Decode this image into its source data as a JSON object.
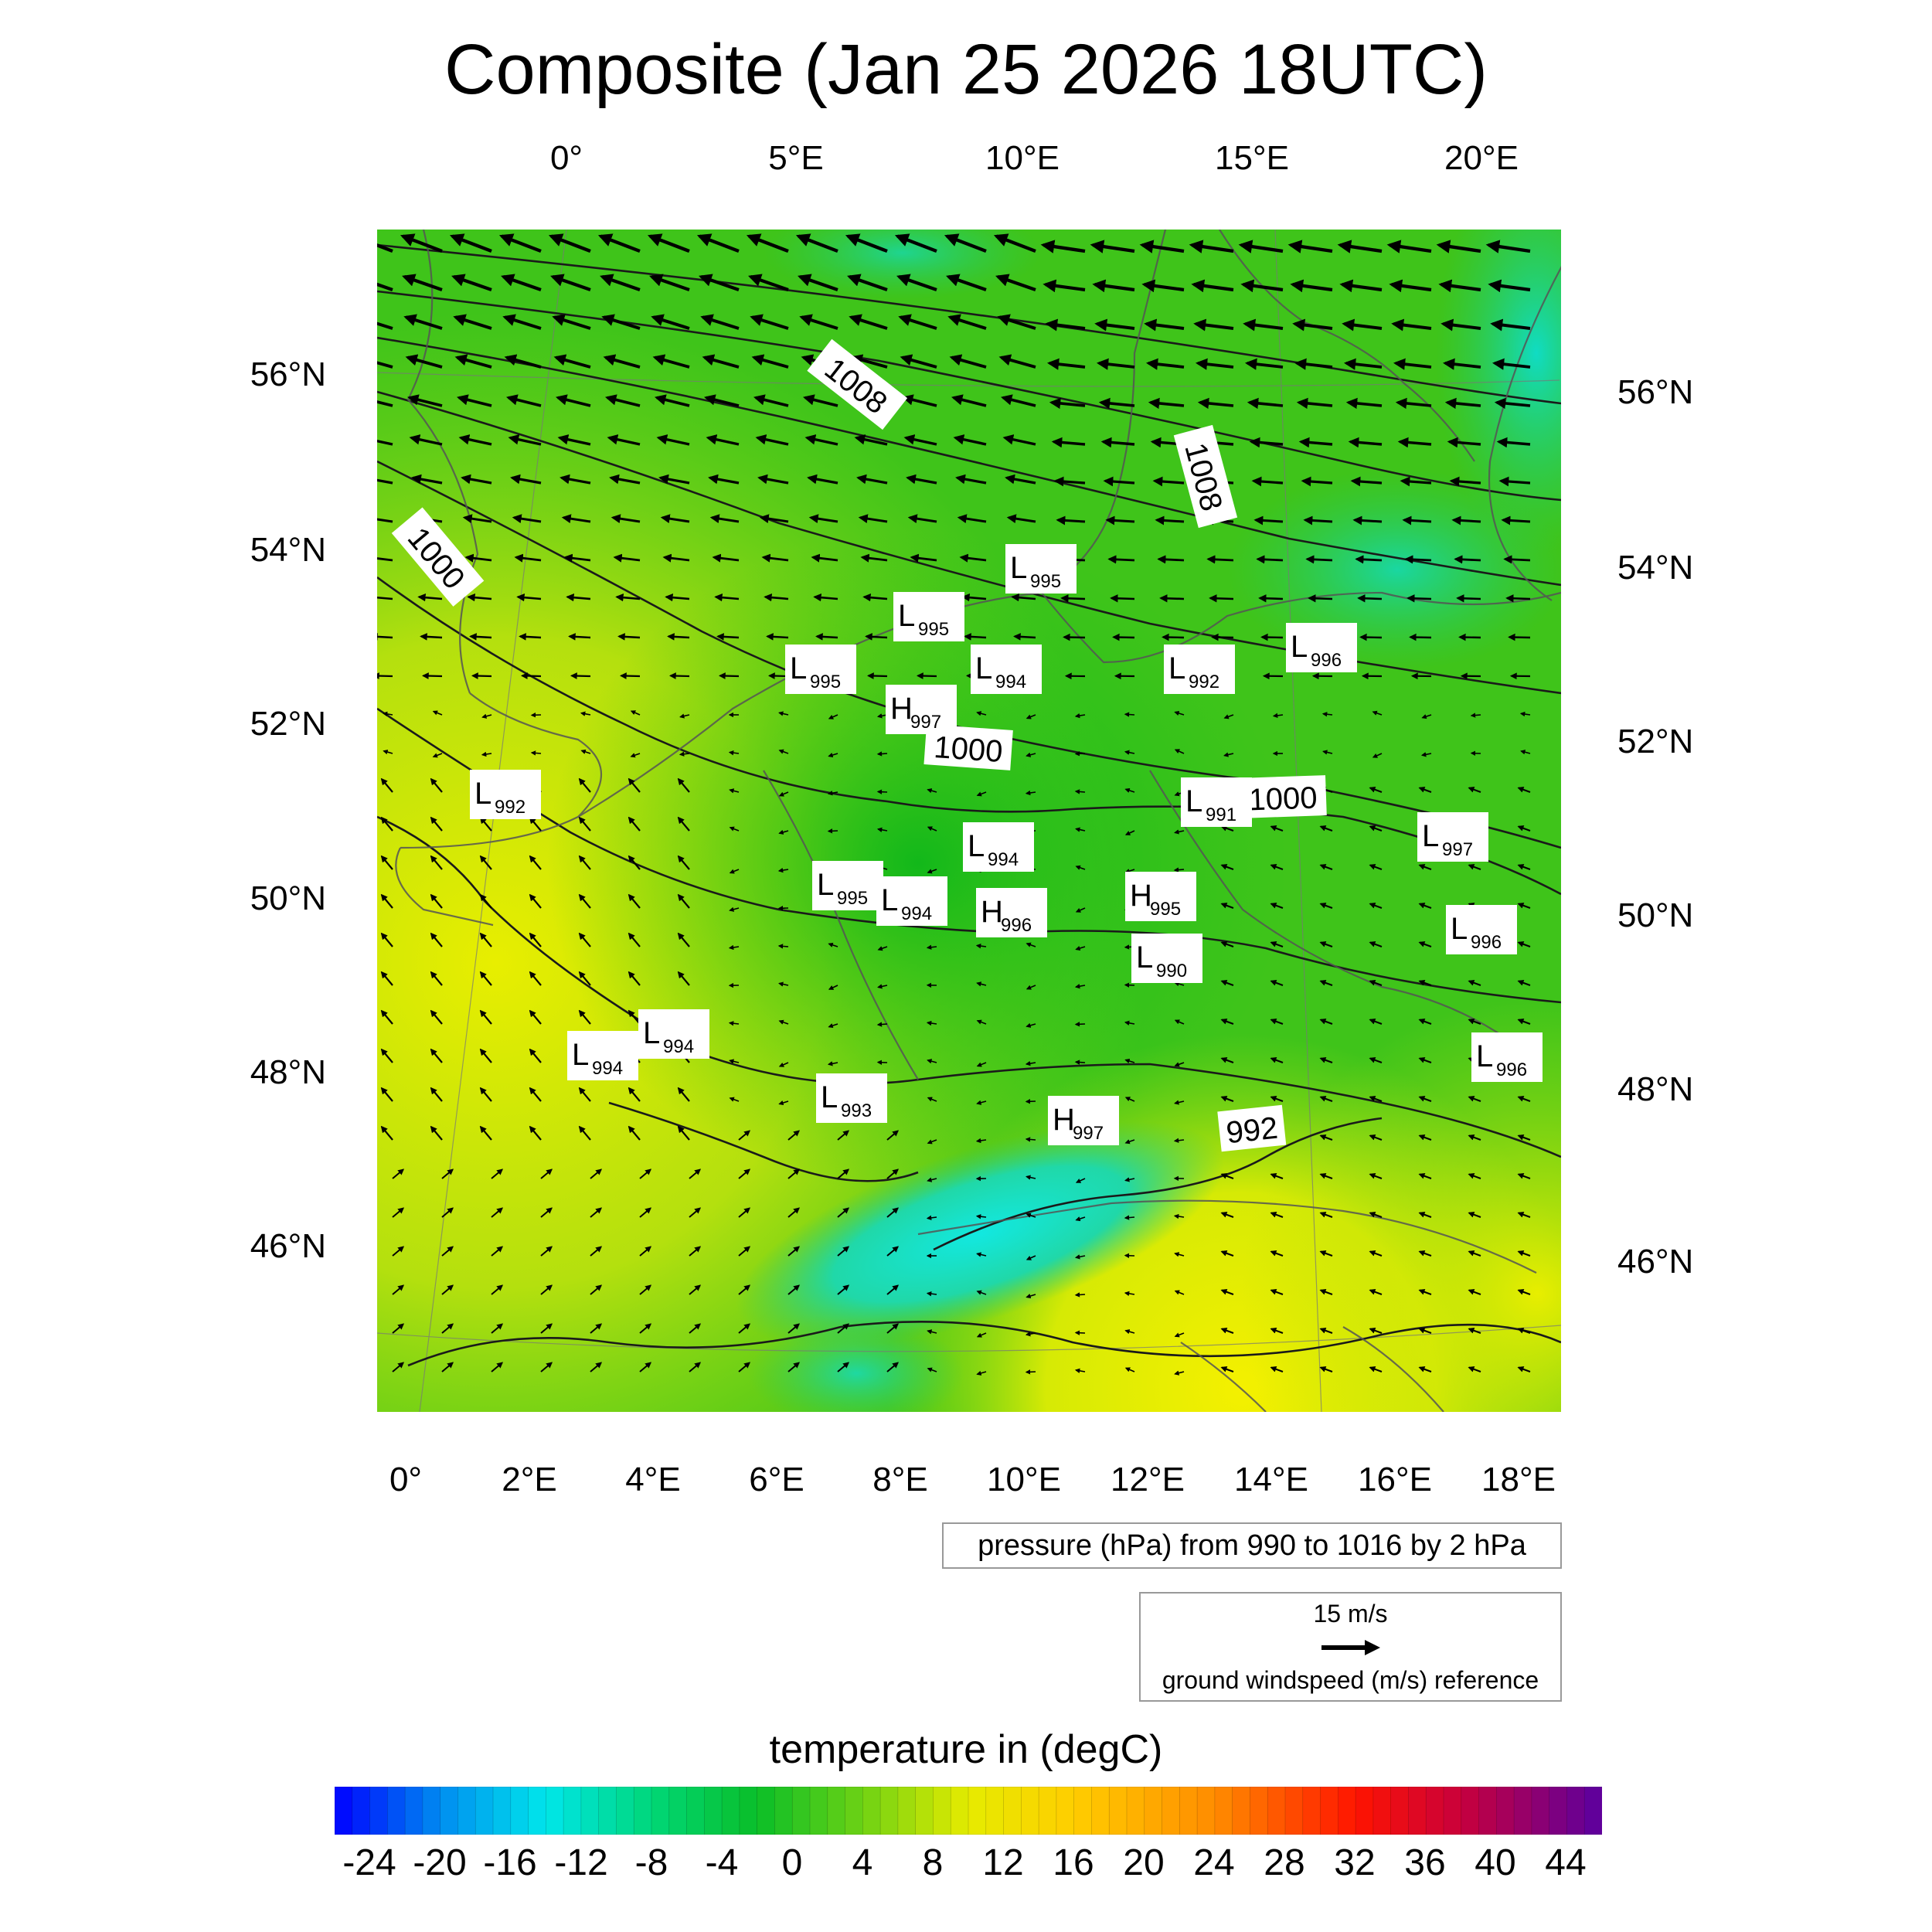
{
  "title": "Composite (Jan 25 2026 18UTC)",
  "axes": {
    "top_lon_ticks": [
      "0°",
      "5°E",
      "10°E",
      "15°E",
      "20°E"
    ],
    "bottom_lon_ticks": [
      "0°",
      "2°E",
      "4°E",
      "6°E",
      "8°E",
      "10°E",
      "12°E",
      "14°E",
      "16°E",
      "18°E"
    ],
    "left_lat_ticks": [
      "56°N",
      "54°N",
      "52°N",
      "50°N",
      "48°N",
      "46°N"
    ],
    "right_lat_ticks": [
      "56°N",
      "54°N",
      "52°N",
      "50°N",
      "48°N",
      "46°N"
    ]
  },
  "isobar_labels": [
    "1008",
    "1008",
    "1000",
    "1000",
    "1000",
    "992"
  ],
  "pressure_centers": [
    {
      "type": "L",
      "value": "995"
    },
    {
      "type": "L",
      "value": "995"
    },
    {
      "type": "L",
      "value": "995"
    },
    {
      "type": "L",
      "value": "994"
    },
    {
      "type": "L",
      "value": "992"
    },
    {
      "type": "H",
      "value": "997"
    },
    {
      "type": "L",
      "value": "996"
    },
    {
      "type": "L",
      "value": "992"
    },
    {
      "type": "L",
      "value": "991"
    },
    {
      "type": "L",
      "value": "997"
    },
    {
      "type": "L",
      "value": "994"
    },
    {
      "type": "L",
      "value": "995"
    },
    {
      "type": "L",
      "value": "994"
    },
    {
      "type": "H",
      "value": "996"
    },
    {
      "type": "H",
      "value": "995"
    },
    {
      "type": "L",
      "value": "990"
    },
    {
      "type": "L",
      "value": "996"
    },
    {
      "type": "L",
      "value": "994"
    },
    {
      "type": "L",
      "value": "994"
    },
    {
      "type": "L",
      "value": "993"
    },
    {
      "type": "H",
      "value": "997"
    },
    {
      "type": "L",
      "value": "996"
    }
  ],
  "pressure_note": "pressure (hPa) from 990 to 1016 by 2 hPa",
  "wind_reference": {
    "speed": "15 m/s",
    "caption": "ground windspeed (m/s) reference"
  },
  "colorbar": {
    "title": "temperature in (degC)",
    "labels": [
      "-24",
      "-20",
      "-16",
      "-12",
      "-8",
      "-4",
      "0",
      "4",
      "8",
      "12",
      "16",
      "20",
      "24",
      "28",
      "32",
      "36",
      "40",
      "44"
    ],
    "min": -26,
    "max": 46,
    "step": 2
  },
  "colors": {
    "land_green": "#33c21a",
    "warm_yellow": "#e6ea00",
    "cold_cyan": "#11ddcc"
  }
}
